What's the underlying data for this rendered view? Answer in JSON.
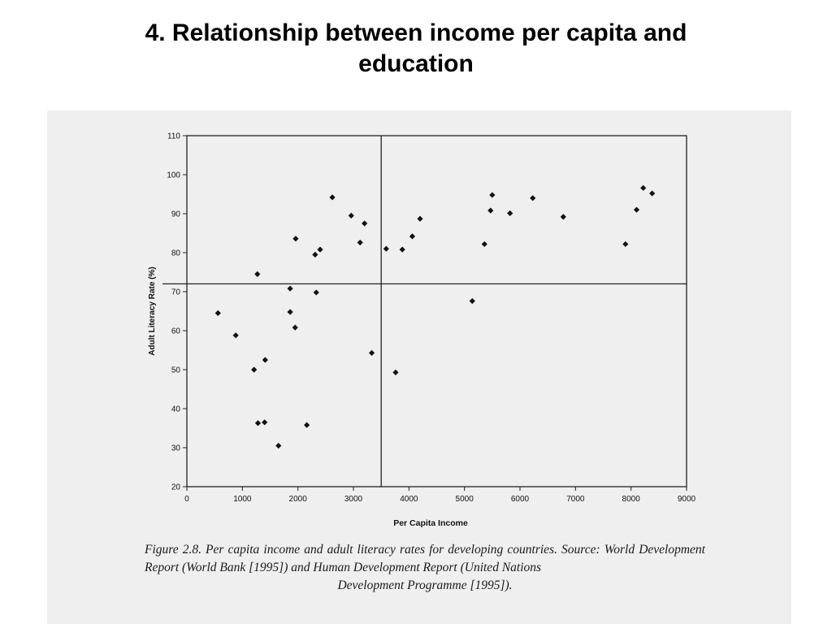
{
  "slide": {
    "title_line1": "4. Relationship between income per capita and",
    "title_line2": "education"
  },
  "caption": {
    "line1": "Figure 2.8.  Per capita income and adult literacy rates for developing countries. Source: World",
    "line2": "Development Report (World Bank [1995]) and Human Development Report (United Nations",
    "line3": "Development Programme [1995])."
  },
  "chart_data": {
    "type": "scatter",
    "title": "",
    "xlabel": "Per Capita Income",
    "ylabel": "Adult Literacy Rate (%)",
    "xlim": [
      0,
      9000
    ],
    "ylim": [
      20,
      110
    ],
    "xticks": [
      0,
      1000,
      2000,
      3000,
      4000,
      5000,
      6000,
      7000,
      8000,
      9000
    ],
    "yticks": [
      20,
      30,
      40,
      50,
      60,
      70,
      80,
      90,
      100,
      110
    ],
    "grid": false,
    "legend": "none",
    "reference_lines": {
      "vertical_x": 3500,
      "horizontal_y": 72
    },
    "marker": "diamond",
    "marker_color": "#111111",
    "points": [
      [
        560,
        64.5
      ],
      [
        880,
        58.8
      ],
      [
        1210,
        50
      ],
      [
        1270,
        74.5
      ],
      [
        1280,
        36.3
      ],
      [
        1400,
        36.5
      ],
      [
        1410,
        52.5
      ],
      [
        1650,
        30.5
      ],
      [
        1860,
        70.8
      ],
      [
        1860,
        64.8
      ],
      [
        1950,
        60.8
      ],
      [
        1960,
        83.6
      ],
      [
        2160,
        35.8
      ],
      [
        2310,
        79.5
      ],
      [
        2330,
        69.8
      ],
      [
        2400,
        80.8
      ],
      [
        2620,
        94.2
      ],
      [
        2960,
        89.5
      ],
      [
        3120,
        82.6
      ],
      [
        3200,
        87.5
      ],
      [
        3330,
        54.3
      ],
      [
        3590,
        81
      ],
      [
        3760,
        49.3
      ],
      [
        3880,
        80.8
      ],
      [
        4060,
        84.2
      ],
      [
        4200,
        88.7
      ],
      [
        5140,
        67.6
      ],
      [
        5360,
        82.2
      ],
      [
        5470,
        90.8
      ],
      [
        5500,
        94.8
      ],
      [
        5820,
        90.1
      ],
      [
        6230,
        94
      ],
      [
        6780,
        89.2
      ],
      [
        7900,
        82.2
      ],
      [
        8100,
        91
      ],
      [
        8220,
        96.6
      ],
      [
        8380,
        95.2
      ]
    ]
  }
}
